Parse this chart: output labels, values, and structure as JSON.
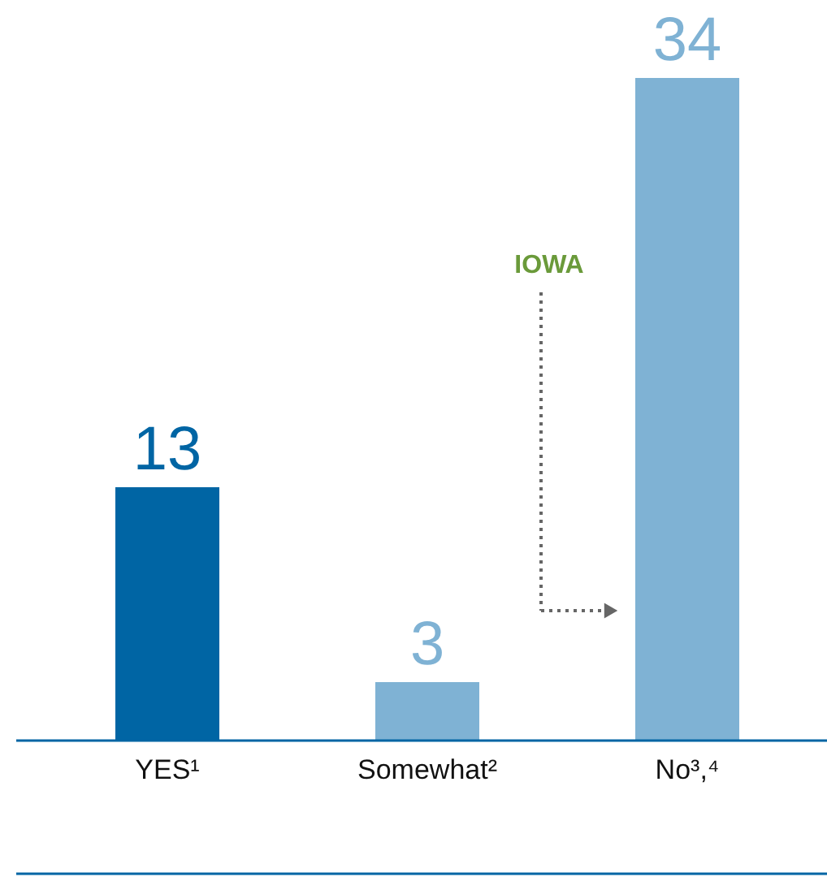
{
  "chart_data": {
    "type": "bar",
    "categories": [
      "YES¹",
      "Somewhat²",
      "No³,⁴"
    ],
    "values": [
      13,
      3,
      34
    ],
    "colors": [
      "#0065a4",
      "#7fb2d4",
      "#7fb2d4"
    ],
    "data_labels": true,
    "annotations": [
      "IOWA"
    ]
  }
}
